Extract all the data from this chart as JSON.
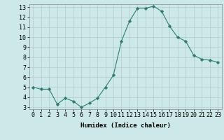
{
  "x": [
    0,
    1,
    2,
    3,
    4,
    5,
    6,
    7,
    8,
    9,
    10,
    11,
    12,
    13,
    14,
    15,
    16,
    17,
    18,
    19,
    20,
    21,
    22,
    23
  ],
  "y": [
    5.0,
    4.8,
    4.8,
    3.3,
    3.9,
    3.6,
    3.0,
    3.4,
    3.9,
    5.0,
    6.2,
    9.6,
    11.6,
    12.9,
    12.9,
    13.1,
    12.6,
    11.1,
    10.0,
    9.6,
    8.2,
    7.8,
    7.7,
    7.5
  ],
  "line_color": "#2e7d6e",
  "marker": "D",
  "marker_size": 2.2,
  "bg_color": "#cde8e8",
  "grid_color": "#b8d0d0",
  "xlabel": "Humidex (Indice chaleur)",
  "ylim": [
    3,
    13
  ],
  "xlim": [
    -0.5,
    23.5
  ],
  "yticks": [
    3,
    4,
    5,
    6,
    7,
    8,
    9,
    10,
    11,
    12,
    13
  ],
  "xticks": [
    0,
    1,
    2,
    3,
    4,
    5,
    6,
    7,
    8,
    9,
    10,
    11,
    12,
    13,
    14,
    15,
    16,
    17,
    18,
    19,
    20,
    21,
    22,
    23
  ],
  "xlabel_fontsize": 6.5,
  "tick_fontsize": 6.0
}
